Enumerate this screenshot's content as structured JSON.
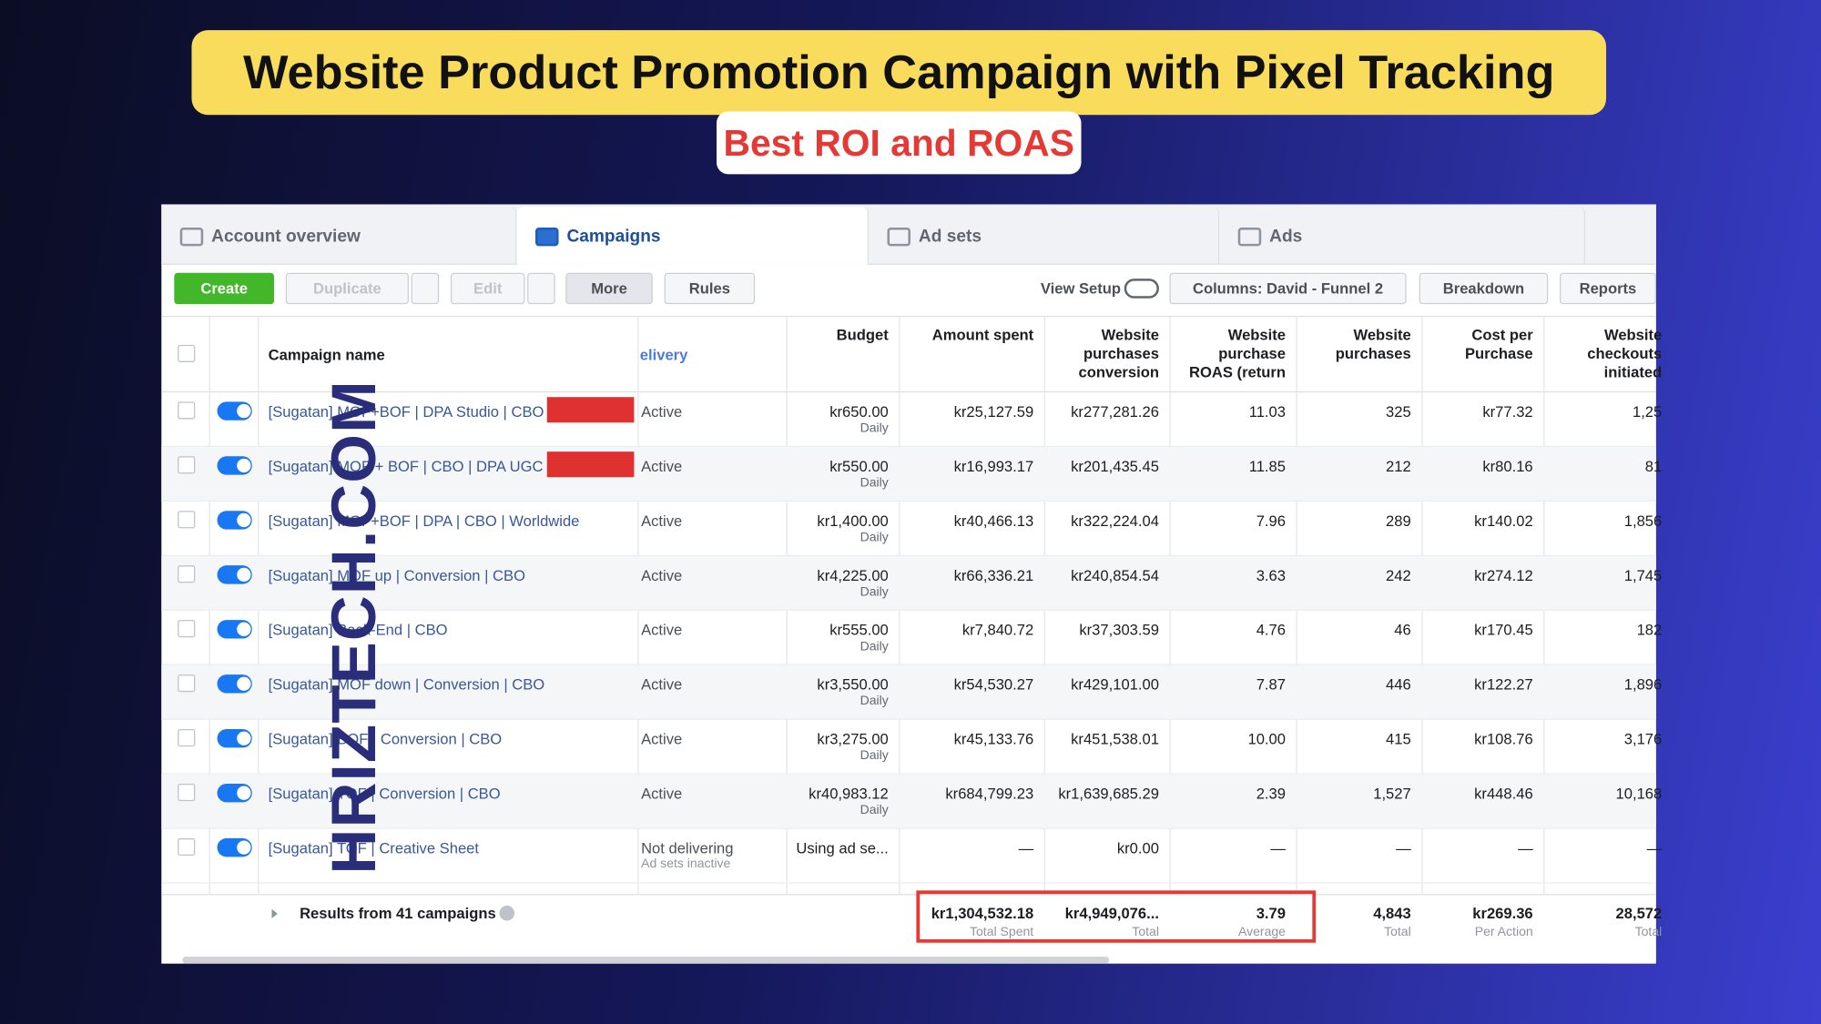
{
  "header": {
    "title": "Website Product Promotion Campaign with Pixel Tracking",
    "subtitle": "Best ROI and ROAS"
  },
  "watermark": "HRIZTECH.COM",
  "tabs": [
    "Account overview",
    "Campaigns",
    "Ad sets",
    "Ads"
  ],
  "toolbar": {
    "create": "Create",
    "duplicate": "Duplicate",
    "edit": "Edit",
    "more": "More",
    "rules": "Rules",
    "view_setup": "View Setup",
    "columns": "Columns: David - Funnel 2",
    "breakdown": "Breakdown",
    "reports": "Reports"
  },
  "table": {
    "headers": {
      "name": "Campaign name",
      "delivery": "elivery",
      "budget": "Budget",
      "amount_spent": "Amount spent",
      "conversion": "Website\npurchases\nconversion",
      "roas": "Website\npurchase\nROAS (return",
      "purchases": "Website\npurchases",
      "cost": "Cost per\nPurchase",
      "checkouts": "Website\ncheckouts\ninitiated"
    },
    "rows": [
      {
        "name": "[Sugatan] MOF+BOF | DPA Studio | CBO |",
        "delivery": "Active",
        "budget": "kr650.00",
        "budget_note": "Daily",
        "amount_spent": "kr25,127.59",
        "conversion": "kr277,281.26",
        "roas": "11.03",
        "purchases": "325",
        "cost": "kr77.32",
        "checkouts": "1,25"
      },
      {
        "name": "[Sugatan] MOF + BOF | CBO | DPA UGC |",
        "delivery": "Active",
        "budget": "kr550.00",
        "budget_note": "Daily",
        "amount_spent": "kr16,993.17",
        "conversion": "kr201,435.45",
        "roas": "11.85",
        "purchases": "212",
        "cost": "kr80.16",
        "checkouts": "81"
      },
      {
        "name": "[Sugatan] MOF+BOF | DPA | CBO | Worldwide",
        "delivery": "Active",
        "budget": "kr1,400.00",
        "budget_note": "Daily",
        "amount_spent": "kr40,466.13",
        "conversion": "kr322,224.04",
        "roas": "7.96",
        "purchases": "289",
        "cost": "kr140.02",
        "checkouts": "1,856"
      },
      {
        "name": "[Sugatan] MOF up | Conversion | CBO",
        "delivery": "Active",
        "budget": "kr4,225.00",
        "budget_note": "Daily",
        "amount_spent": "kr66,336.21",
        "conversion": "kr240,854.54",
        "roas": "3.63",
        "purchases": "242",
        "cost": "kr274.12",
        "checkouts": "1,745"
      },
      {
        "name": "[Sugatan] Back-End | CBO",
        "delivery": "Active",
        "budget": "kr555.00",
        "budget_note": "Daily",
        "amount_spent": "kr7,840.72",
        "conversion": "kr37,303.59",
        "roas": "4.76",
        "purchases": "46",
        "cost": "kr170.45",
        "checkouts": "182"
      },
      {
        "name": "[Sugatan] MOF down | Conversion | CBO",
        "delivery": "Active",
        "budget": "kr3,550.00",
        "budget_note": "Daily",
        "amount_spent": "kr54,530.27",
        "conversion": "kr429,101.00",
        "roas": "7.87",
        "purchases": "446",
        "cost": "kr122.27",
        "checkouts": "1,896"
      },
      {
        "name": "[Sugatan] BOF | Conversion | CBO",
        "delivery": "Active",
        "budget": "kr3,275.00",
        "budget_note": "Daily",
        "amount_spent": "kr45,133.76",
        "conversion": "kr451,538.01",
        "roas": "10.00",
        "purchases": "415",
        "cost": "kr108.76",
        "checkouts": "3,176"
      },
      {
        "name": "[Sugatan] TOF | Conversion | CBO",
        "delivery": "Active",
        "budget": "kr40,983.12",
        "budget_note": "Daily",
        "amount_spent": "kr684,799.23",
        "conversion": "kr1,639,685.29",
        "roas": "2.39",
        "purchases": "1,527",
        "cost": "kr448.46",
        "checkouts": "10,168"
      },
      {
        "name": "[Sugatan] TOF | Creative Sheet",
        "delivery": "Not delivering",
        "delivery_note": "Ad sets inactive",
        "budget": "Using ad se...",
        "amount_spent": "—",
        "conversion": "kr0.00",
        "roas": "—",
        "purchases": "—",
        "cost": "—",
        "checkouts": "—"
      }
    ],
    "footer": {
      "label": "Results from 41 campaigns",
      "amount_spent": {
        "value": "kr1,304,532.18",
        "note": "Total Spent"
      },
      "conversion": {
        "value": "kr4,949,076...",
        "note": "Total"
      },
      "roas": {
        "value": "3.79",
        "note": "Average"
      },
      "purchases": {
        "value": "4,843",
        "note": "Total"
      },
      "cost": {
        "value": "kr269.36",
        "note": "Per Action"
      },
      "checkouts": {
        "value": "28,572",
        "note": "Total"
      }
    }
  }
}
